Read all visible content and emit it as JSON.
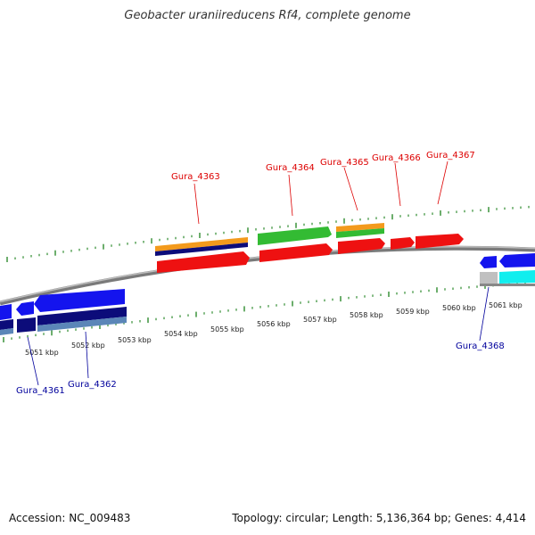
{
  "title": "Geobacter uraniireducens Rf4, complete genome",
  "footer": {
    "accession": "Accession: NC_009483",
    "topology": "Topology: circular; Length: 5,136,364 bp; Genes: 4,414"
  },
  "scale_labels": [
    "5051 kbp",
    "5052 kbp",
    "5053 kbp",
    "5054 kbp",
    "5055 kbp",
    "5056 kbp",
    "5057 kbp",
    "5058 kbp",
    "5059 kbp",
    "5060 kbp",
    "5061 kbp"
  ],
  "gene_labels": {
    "forward": [
      "Gura_4363",
      "Gura_4364",
      "Gura_4365",
      "Gura_4366",
      "Gura_4367"
    ],
    "reverse": [
      "Gura_4361",
      "Gura_4362",
      "Gura_4368"
    ]
  },
  "colors": {
    "forward_label": "#dd0000",
    "reverse_label": "#00009c",
    "tick": "#2e8b2e",
    "backbone": "#888888",
    "red_track": "#ee1111",
    "orange_track": "#f39a1c",
    "green_track": "#33bb33",
    "navy_track": "#0c0c7a",
    "blue_track": "#1414ee",
    "steel_track": "#5b86b8",
    "cyan_track": "#11eeee",
    "gray_track": "#c0c0c0"
  }
}
